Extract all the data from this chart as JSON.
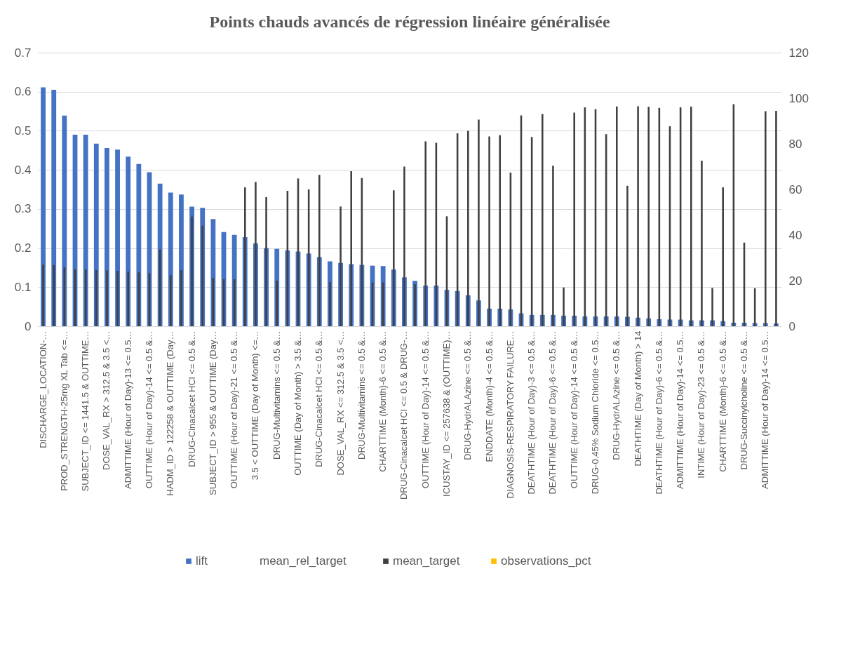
{
  "chart_data": {
    "type": "bar",
    "title": "Points chauds avancés de régression linéaire généralisée",
    "categories": [
      "DISCHARGE_LOCATION-…",
      null,
      "PROD_STRENGTH-25mg XL Tab <=…",
      null,
      "SUBJECT_ID <= 1441.5 & OUTTIME…",
      null,
      "DOSE_VAL_RX > 312.5 & 3.5 <…",
      null,
      "ADMITTIME (Hour of Day)-13 <= 0.5…",
      null,
      "OUTTIME (Hour of Day)-14 <= 0.5 &…",
      null,
      "HADM_ID > 122258 & OUTTIME (Day…",
      null,
      "DRUG-Cinacalcet HCl <= 0.5 &…",
      null,
      "SUBJECT_ID > 955 & OUTTIME (Day…",
      null,
      "OUTTIME (Hour of Day)-21 <= 0.5 &…",
      null,
      "3.5 < OUTTIME (Day of Month) <=…",
      null,
      "DRUG-Multivitamins <= 0.5 &…",
      null,
      "OUTTIME (Day of Month) > 3.5 &…",
      null,
      "DRUG-Cinacalcet HCl <= 0.5 &…",
      null,
      "DOSE_VAL_RX <= 312.5 & 3.5 <…",
      null,
      "DRUG-Multivitamins <= 0.5 &…",
      null,
      "CHARTTIME (Month)-6 <= 0.5 &…",
      null,
      "DRUG-Cinacalcet HCl <= 0.5 & DRUG-…",
      null,
      "OUTTIME (Hour of Day)-14 <= 0.5 &…",
      null,
      "ICUSTAY_ID <= 257638 & (OUTTIME)…",
      null,
      "DRUG-HydrALAzine <= 0.5 &…",
      null,
      "ENDDATE (Month)-4 <= 0.5 &…",
      null,
      "DIAGNOSIS-RESPIRATORY FAILURE…",
      null,
      "DEATHTIME (Hour of Day)-3 <= 0.5 &…",
      null,
      "DEATHTIME (Hour of Day)-6 <= 0.5 &…",
      null,
      "OUTTIME (Hour of Day)-14 <= 0.5 &…",
      null,
      "DRUG-0.45% Sodium Chloride <= 0.5…",
      null,
      "DRUG-HydrALAzine <= 0.5 &…",
      null,
      "DEATHTIME (Day of Month) > 14",
      null,
      "DEATHTIME (Hour of Day)-6 <= 0.5 &…",
      null,
      "ADMITTIME (Hour of Day)-14 <= 0.5…",
      null,
      "INTIME (Hour of Day)-23 <= 0.5 &…",
      null,
      "CHARTTIME (Month)-6 <= 0.5 &…",
      null,
      "DRUG-Succinylcholine <= 0.5 &…",
      null,
      "ADMITTIME (Hour of Day)-14 <= 0.5…",
      null
    ],
    "series": [
      {
        "name": "lift",
        "color": "#4472c4",
        "values": [
          0.611,
          0.605,
          0.539,
          0.49,
          0.49,
          0.467,
          0.456,
          0.452,
          0.434,
          0.415,
          0.394,
          0.365,
          0.342,
          0.337,
          0.306,
          0.303,
          0.274,
          0.241,
          0.234,
          0.228,
          0.212,
          0.2,
          0.198,
          0.194,
          0.191,
          0.186,
          0.177,
          0.166,
          0.162,
          0.159,
          0.157,
          0.155,
          0.154,
          0.145,
          0.125,
          0.116,
          0.104,
          0.104,
          0.093,
          0.09,
          0.079,
          0.066,
          0.045,
          0.045,
          0.043,
          0.033,
          0.029,
          0.029,
          0.029,
          0.027,
          0.027,
          0.025,
          0.025,
          0.025,
          0.025,
          0.024,
          0.022,
          0.02,
          0.018,
          0.017,
          0.017,
          0.015,
          0.015,
          0.015,
          0.013,
          0.009,
          0.009,
          0.008,
          0.008,
          0.007
        ]
      },
      {
        "name": "mean_rel_target",
        "values": [
          null,
          null,
          null,
          null,
          null,
          null,
          null,
          null,
          null,
          null,
          null,
          null,
          null,
          null,
          null,
          null,
          null,
          null,
          null,
          null,
          null,
          null,
          null,
          null,
          null,
          null,
          null,
          null,
          null,
          null,
          null,
          null,
          null,
          null,
          null,
          null,
          null,
          null,
          null,
          null,
          null,
          null,
          null,
          null,
          null,
          null,
          null,
          null,
          null,
          null,
          null,
          null,
          null,
          null,
          null,
          null,
          null,
          null,
          null,
          null,
          null,
          null,
          null,
          null,
          null,
          null,
          null,
          null,
          null,
          null
        ]
      },
      {
        "name": "mean_target",
        "color": "#404040",
        "axis": "y2",
        "values": [
          27.0,
          26.8,
          25.8,
          24.9,
          24.9,
          24.6,
          24.5,
          24.3,
          24.0,
          23.6,
          23.3,
          33.7,
          22.4,
          24.6,
          48.1,
          44.1,
          21.2,
          20.6,
          20.6,
          60.9,
          63.3,
          56.6,
          20.0,
          59.4,
          64.8,
          60.0,
          66.4,
          19.4,
          52.5,
          68.0,
          65.0,
          19.2,
          19.2,
          59.6,
          70.0,
          18.4,
          81.1,
          80.5,
          48.2,
          84.6,
          85.7,
          90.6,
          83.2,
          83.8,
          67.4,
          92.5,
          83.0,
          93.1,
          70.4,
          17.0,
          93.7,
          96.0,
          95.2,
          84.2,
          96.4,
          61.6,
          96.5,
          96.2,
          95.8,
          87.7,
          96.0,
          96.3,
          72.6,
          16.8,
          60.9,
          97.4,
          36.7,
          16.7,
          94.3,
          94.5
        ]
      },
      {
        "name": "observations_pct",
        "color": "#ffc000",
        "values": [
          null,
          null,
          null,
          null,
          null,
          null,
          null,
          null,
          null,
          null,
          null,
          null,
          null,
          null,
          null,
          null,
          null,
          null,
          null,
          null,
          null,
          null,
          null,
          null,
          null,
          null,
          null,
          null,
          null,
          null,
          null,
          null,
          null,
          null,
          null,
          null,
          null,
          null,
          null,
          null,
          null,
          null,
          null,
          null,
          null,
          null,
          null,
          null,
          null,
          null,
          null,
          null,
          null,
          null,
          null,
          null,
          null,
          null,
          null,
          null,
          null,
          null,
          null,
          null,
          null,
          null,
          null,
          null,
          null,
          null
        ]
      }
    ],
    "ylim": [
      0,
      0.7
    ],
    "yticks": [
      0,
      0.1,
      0.2,
      0.3,
      0.4,
      0.5,
      0.6,
      0.7
    ],
    "y2lim": [
      0,
      120
    ],
    "y2ticks": [
      0,
      20,
      40,
      60,
      80,
      100,
      120
    ],
    "grid": "y",
    "legend": "bottom"
  }
}
